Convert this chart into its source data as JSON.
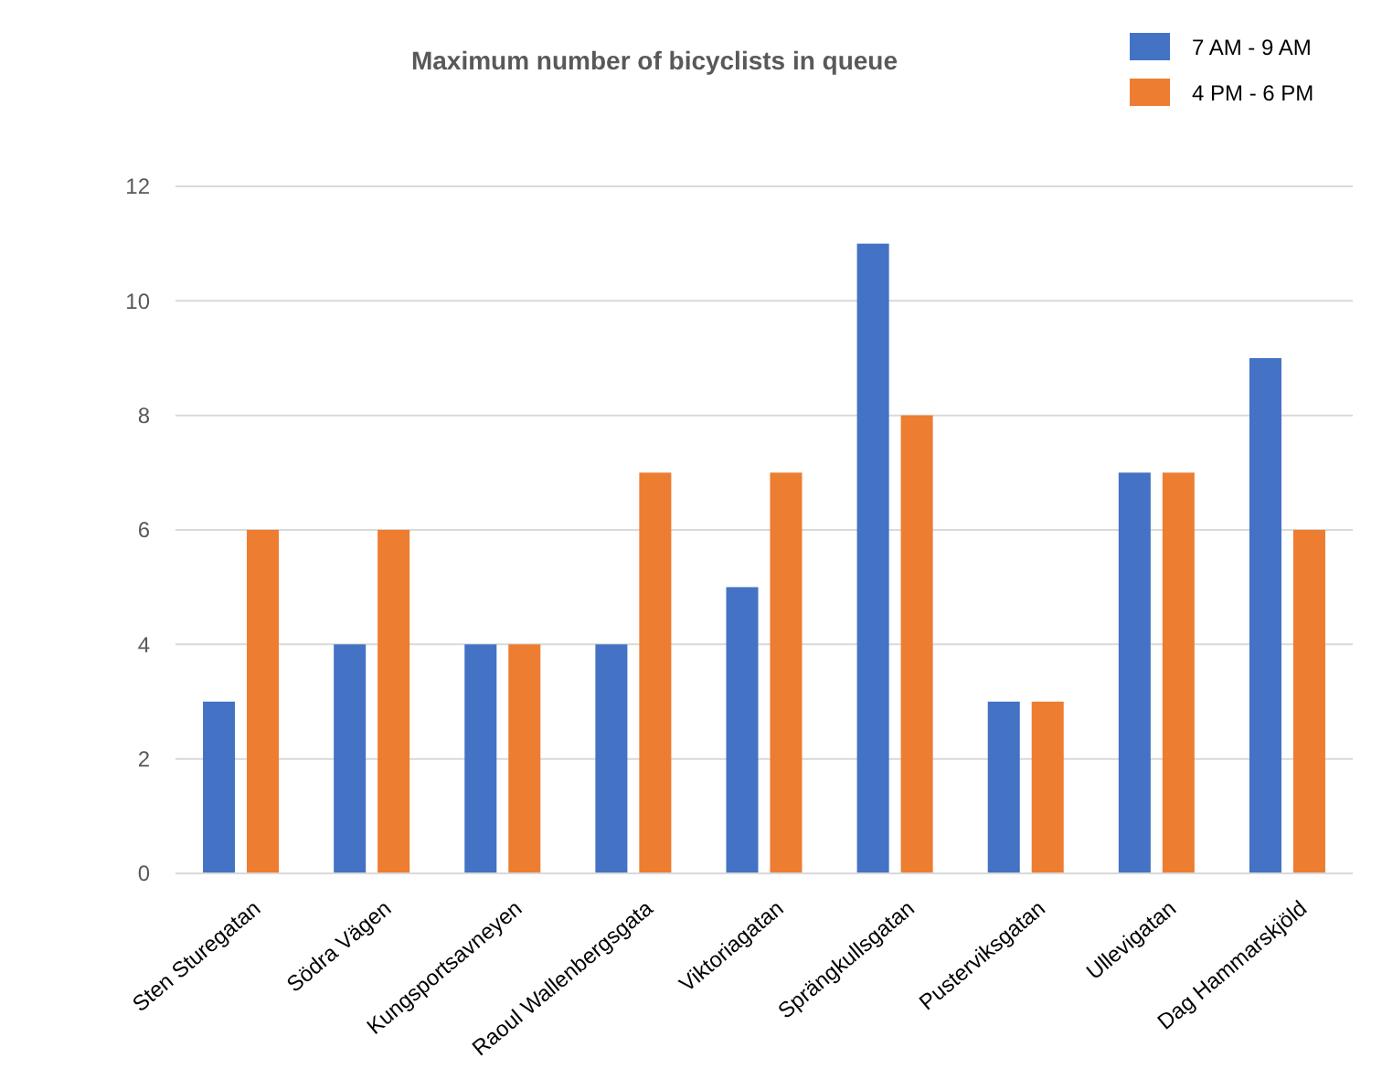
{
  "chart_data": {
    "type": "bar",
    "title": "Maximum number of bicyclists in queue",
    "categories": [
      "Sten Sturegatan",
      "Södra Vägen",
      "Kungsportsavneyen",
      "Raoul Wallenbergsgata",
      "Viktoriagatan",
      "Sprängkullsgatan",
      "Pusterviksgatan",
      "Ullevigatan",
      "Dag Hammarskjöld"
    ],
    "series": [
      {
        "name": "7 AM - 9 AM",
        "color": "#4472c4",
        "values": [
          3,
          4,
          4,
          4,
          5,
          11,
          3,
          7,
          9
        ]
      },
      {
        "name": "4 PM - 6 PM",
        "color": "#ed7d31",
        "values": [
          6,
          6,
          4,
          7,
          7,
          8,
          3,
          7,
          6
        ]
      }
    ],
    "ylim": [
      0,
      12
    ],
    "yticks": [
      0,
      2,
      4,
      6,
      8,
      10,
      12
    ],
    "grid": "y",
    "legend": "top right"
  }
}
